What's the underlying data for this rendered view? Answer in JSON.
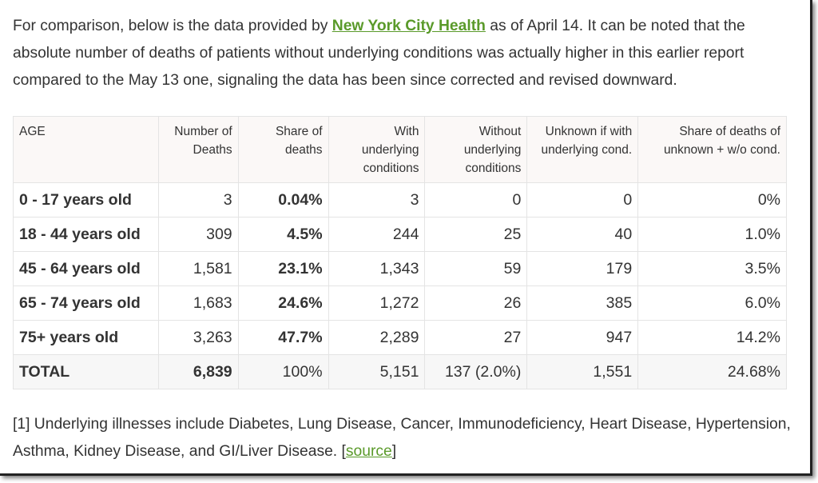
{
  "intro": {
    "before": "For comparison, below is the data provided by ",
    "link": "New York City Health",
    "after": " as of April 14. It can be noted that the absolute number of deaths of patients without underlying conditions was actually higher in this earlier report compared to the May 13 one, signaling the data has been since corrected and revised downward."
  },
  "table": {
    "headers": [
      "AGE",
      "Number of Deaths",
      "Share of deaths",
      "With underlying conditions",
      "Without underlying conditions",
      "Unknown if with underlying cond.",
      "Share of deaths of unknown + w/o cond."
    ],
    "rows": [
      [
        "0 - 17 years old",
        "3",
        "0.04%",
        "3",
        "0",
        "0",
        "0%"
      ],
      [
        "18 - 44 years old",
        "309",
        "4.5%",
        "244",
        "25",
        "40",
        "1.0%"
      ],
      [
        "45 - 64 years old",
        "1,581",
        "23.1%",
        "1,343",
        "59",
        "179",
        "3.5%"
      ],
      [
        "65 - 74 years old",
        "1,683",
        "24.6%",
        "1,272",
        "26",
        "385",
        "6.0%"
      ],
      [
        "75+ years old",
        "3,263",
        "47.7%",
        "2,289",
        "27",
        "947",
        "14.2%"
      ],
      [
        "TOTAL",
        "6,839",
        "100%",
        "5,151",
        "137 (2.0%)",
        "1,551",
        "24.68%"
      ]
    ]
  },
  "footnote": {
    "text": "[1] Underlying illnesses include Diabetes, Lung Disease, Cancer, Immunodeficiency, Heart Disease, Hypertension, Asthma, Kidney Disease, and GI/Liver Disease. [",
    "link": "source",
    "end": "]"
  }
}
